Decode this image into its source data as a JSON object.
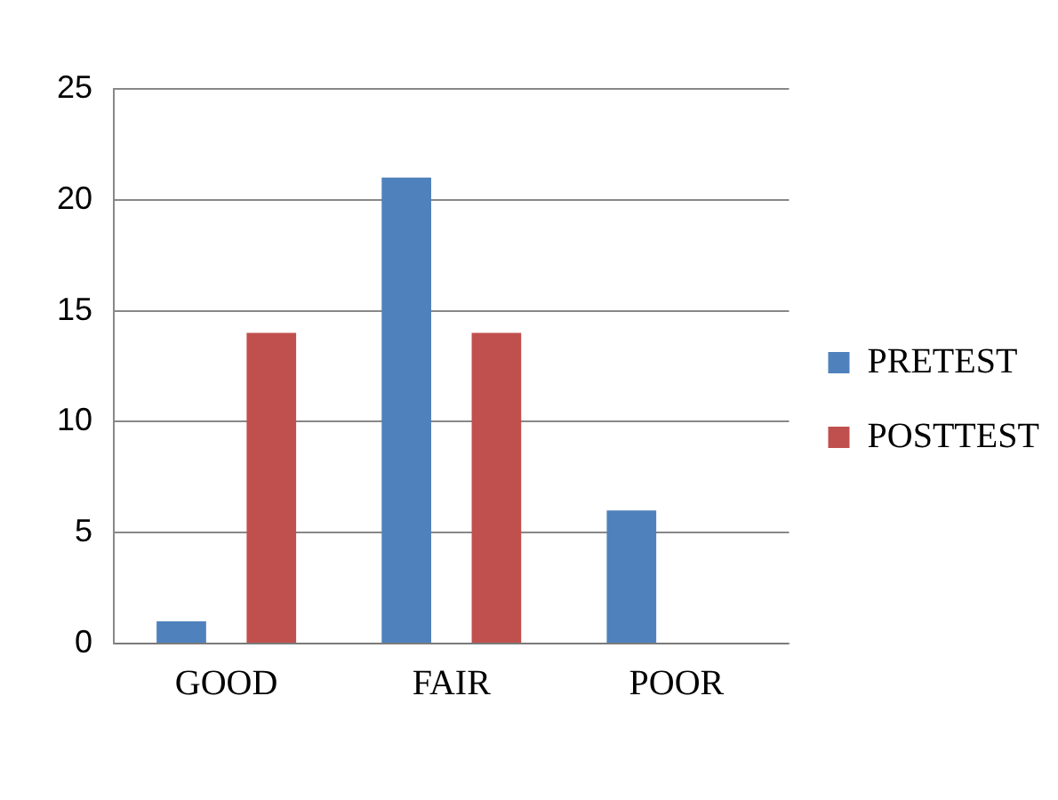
{
  "chart_data": {
    "type": "bar",
    "categories": [
      "GOOD",
      "FAIR",
      "POOR"
    ],
    "series": [
      {
        "name": "PRETEST",
        "color": "#4f81bd",
        "values": [
          1,
          21,
          6
        ]
      },
      {
        "name": "POSTTEST",
        "color": "#c0504d",
        "values": [
          14,
          14,
          0
        ]
      }
    ],
    "ylim": [
      0,
      25
    ],
    "yticks": [
      0,
      5,
      10,
      15,
      20,
      25
    ],
    "grid": "y",
    "legend": "right"
  }
}
